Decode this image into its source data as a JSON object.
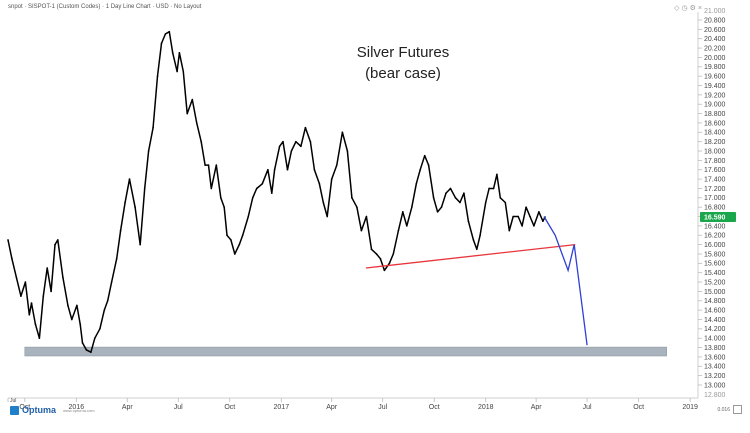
{
  "header_text": "snpot · SISPOT-1 (Custom Codes) · 1 Day Line Chart · USD · No Layout",
  "toolbar_icons": [
    "diamond-icon",
    "clock-icon",
    "settings-icon",
    "close-icon"
  ],
  "brand": {
    "name": "Optuma",
    "sub": "www.optuma.com"
  },
  "corner_value": "0.016",
  "chart_data": {
    "type": "line",
    "title": "Silver Futures",
    "subtitle": "(bear case)",
    "xlabel": "",
    "ylabel": "",
    "y_axis_side": "right",
    "ylim": [
      12.9,
      21.05
    ],
    "y_ticks": [
      13.0,
      13.2,
      13.4,
      13.6,
      13.8,
      14.0,
      14.2,
      14.4,
      14.6,
      14.8,
      15.0,
      15.2,
      15.4,
      15.6,
      15.8,
      16.0,
      16.2,
      16.4,
      16.6,
      16.8,
      17.0,
      17.2,
      17.4,
      17.6,
      17.8,
      18.0,
      18.2,
      18.4,
      18.6,
      18.8,
      19.0,
      19.2,
      19.4,
      19.6,
      19.8,
      20.0,
      20.2,
      20.4,
      20.6,
      20.8
    ],
    "y_tick_labels": [
      "13.000",
      "13.200",
      "13.400",
      "13.600",
      "13.800",
      "14.000",
      "14.200",
      "14.400",
      "14.600",
      "14.800",
      "15.000",
      "15.200",
      "15.400",
      "15.600",
      "15.800",
      "16.000",
      "16.200",
      "16.400",
      "16.600",
      "16.800",
      "17.000",
      "17.200",
      "17.400",
      "17.600",
      "17.800",
      "18.000",
      "18.200",
      "18.400",
      "18.600",
      "18.800",
      "19.000",
      "19.200",
      "19.400",
      "19.600",
      "19.800",
      "20.000",
      "20.200",
      "20.400",
      "20.600",
      "20.800"
    ],
    "y_top_label": "21.000",
    "y_bottom_label": "12.800",
    "xlim": [
      "2015-09-01",
      "2019-01-15"
    ],
    "x_ticks": [
      {
        "date": "2015-09-01",
        "label": "Jul"
      },
      {
        "date": "2015-10-01",
        "label": "Oct"
      },
      {
        "date": "2016-01-01",
        "label": "2016"
      },
      {
        "date": "2016-04-01",
        "label": "Apr"
      },
      {
        "date": "2016-07-01",
        "label": "Jul"
      },
      {
        "date": "2016-10-01",
        "label": "Oct"
      },
      {
        "date": "2017-01-01",
        "label": "2017"
      },
      {
        "date": "2017-04-01",
        "label": "Apr"
      },
      {
        "date": "2017-07-01",
        "label": "Jul"
      },
      {
        "date": "2017-10-01",
        "label": "Oct"
      },
      {
        "date": "2018-01-01",
        "label": "2018"
      },
      {
        "date": "2018-04-01",
        "label": "Apr"
      },
      {
        "date": "2018-07-01",
        "label": "Jul"
      },
      {
        "date": "2018-10-01",
        "label": "Oct"
      },
      {
        "date": "2019-01-01",
        "label": "2019"
      }
    ],
    "series": [
      {
        "color": "#000000",
        "points": [
          [
            "2015-09-01",
            16.1
          ],
          [
            "2015-09-08",
            15.7
          ],
          [
            "2015-09-16",
            15.3
          ],
          [
            "2015-09-24",
            14.9
          ],
          [
            "2015-10-02",
            15.2
          ],
          [
            "2015-10-09",
            14.5
          ],
          [
            "2015-10-13",
            14.75
          ],
          [
            "2015-10-20",
            14.3
          ],
          [
            "2015-10-27",
            14.0
          ],
          [
            "2015-11-03",
            14.9
          ],
          [
            "2015-11-10",
            15.5
          ],
          [
            "2015-11-17",
            15.0
          ],
          [
            "2015-11-24",
            16.0
          ],
          [
            "2015-11-29",
            16.1
          ],
          [
            "2015-12-08",
            15.3
          ],
          [
            "2015-12-17",
            14.7
          ],
          [
            "2015-12-24",
            14.4
          ],
          [
            "2016-01-02",
            14.7
          ],
          [
            "2016-01-08",
            14.3
          ],
          [
            "2016-01-12",
            13.9
          ],
          [
            "2016-01-19",
            13.75
          ],
          [
            "2016-01-27",
            13.7
          ],
          [
            "2016-02-03",
            14.0
          ],
          [
            "2016-02-12",
            14.2
          ],
          [
            "2016-02-20",
            14.6
          ],
          [
            "2016-02-26",
            14.8
          ],
          [
            "2016-03-04",
            15.2
          ],
          [
            "2016-03-13",
            15.7
          ],
          [
            "2016-03-20",
            16.3
          ],
          [
            "2016-03-28",
            16.9
          ],
          [
            "2016-04-05",
            17.4
          ],
          [
            "2016-04-15",
            16.8
          ],
          [
            "2016-04-24",
            16.0
          ],
          [
            "2016-05-02",
            17.2
          ],
          [
            "2016-05-09",
            18.0
          ],
          [
            "2016-05-17",
            18.5
          ],
          [
            "2016-05-25",
            19.6
          ],
          [
            "2016-06-01",
            20.3
          ],
          [
            "2016-06-08",
            20.5
          ],
          [
            "2016-06-15",
            20.55
          ],
          [
            "2016-06-21",
            20.1
          ],
          [
            "2016-06-29",
            19.7
          ],
          [
            "2016-07-03",
            20.1
          ],
          [
            "2016-07-10",
            19.7
          ],
          [
            "2016-07-17",
            18.8
          ],
          [
            "2016-07-26",
            19.1
          ],
          [
            "2016-08-03",
            18.6
          ],
          [
            "2016-08-11",
            18.2
          ],
          [
            "2016-08-18",
            17.7
          ],
          [
            "2016-08-24",
            17.7
          ],
          [
            "2016-08-29",
            17.2
          ],
          [
            "2016-09-07",
            17.7
          ],
          [
            "2016-09-15",
            17.0
          ],
          [
            "2016-09-21",
            16.8
          ],
          [
            "2016-09-26",
            16.2
          ],
          [
            "2016-10-03",
            16.1
          ],
          [
            "2016-10-10",
            15.8
          ],
          [
            "2016-10-18",
            16.0
          ],
          [
            "2016-10-24",
            16.2
          ],
          [
            "2016-11-03",
            16.6
          ],
          [
            "2016-11-11",
            17.0
          ],
          [
            "2016-11-18",
            17.2
          ],
          [
            "2016-11-28",
            17.3
          ],
          [
            "2016-12-08",
            17.6
          ],
          [
            "2016-12-15",
            17.1
          ],
          [
            "2016-12-20",
            17.6
          ],
          [
            "2016-12-29",
            18.1
          ],
          [
            "2017-01-04",
            18.2
          ],
          [
            "2017-01-12",
            17.6
          ],
          [
            "2017-01-19",
            18.0
          ],
          [
            "2017-01-27",
            18.2
          ],
          [
            "2017-02-05",
            18.1
          ],
          [
            "2017-02-13",
            18.5
          ],
          [
            "2017-02-22",
            18.2
          ],
          [
            "2017-03-01",
            17.6
          ],
          [
            "2017-03-10",
            17.3
          ],
          [
            "2017-03-17",
            16.9
          ],
          [
            "2017-03-24",
            16.6
          ],
          [
            "2017-04-01",
            17.4
          ],
          [
            "2017-04-10",
            17.7
          ],
          [
            "2017-04-20",
            18.4
          ],
          [
            "2017-04-29",
            18.0
          ],
          [
            "2017-05-07",
            17.0
          ],
          [
            "2017-05-16",
            16.8
          ],
          [
            "2017-05-24",
            16.3
          ],
          [
            "2017-06-02",
            16.6
          ],
          [
            "2017-06-11",
            15.9
          ],
          [
            "2017-06-20",
            15.8
          ],
          [
            "2017-06-27",
            15.7
          ],
          [
            "2017-07-04",
            15.45
          ],
          [
            "2017-07-13",
            15.6
          ],
          [
            "2017-07-20",
            15.8
          ],
          [
            "2017-07-29",
            16.3
          ],
          [
            "2017-08-06",
            16.7
          ],
          [
            "2017-08-13",
            16.4
          ],
          [
            "2017-08-22",
            16.8
          ],
          [
            "2017-08-30",
            17.3
          ],
          [
            "2017-09-06",
            17.6
          ],
          [
            "2017-09-14",
            17.9
          ],
          [
            "2017-09-21",
            17.7
          ],
          [
            "2017-09-30",
            17.0
          ],
          [
            "2017-10-07",
            16.7
          ],
          [
            "2017-10-14",
            16.8
          ],
          [
            "2017-10-22",
            17.1
          ],
          [
            "2017-10-30",
            17.2
          ],
          [
            "2017-11-08",
            17.0
          ],
          [
            "2017-11-16",
            16.9
          ],
          [
            "2017-11-23",
            17.1
          ],
          [
            "2017-12-01",
            16.5
          ],
          [
            "2017-12-10",
            16.1
          ],
          [
            "2017-12-16",
            15.9
          ],
          [
            "2017-12-22",
            16.2
          ],
          [
            "2018-01-01",
            16.9
          ],
          [
            "2018-01-07",
            17.2
          ],
          [
            "2018-01-15",
            17.2
          ],
          [
            "2018-01-21",
            17.5
          ],
          [
            "2018-01-27",
            17.0
          ],
          [
            "2018-02-05",
            16.9
          ],
          [
            "2018-02-12",
            16.3
          ],
          [
            "2018-02-19",
            16.6
          ],
          [
            "2018-02-28",
            16.6
          ],
          [
            "2018-03-07",
            16.4
          ],
          [
            "2018-03-14",
            16.8
          ],
          [
            "2018-03-21",
            16.6
          ],
          [
            "2018-03-28",
            16.4
          ],
          [
            "2018-04-06",
            16.7
          ],
          [
            "2018-04-13",
            16.5
          ],
          [
            "2018-04-17",
            16.59
          ]
        ]
      }
    ],
    "last_value_label": "16.590",
    "annotations": [
      {
        "type": "trendline",
        "color": "#e8353c",
        "points": [
          [
            "2017-06-01",
            15.5
          ],
          [
            "2018-06-10",
            16.0
          ]
        ]
      },
      {
        "type": "projection",
        "color": "#2f3fd6",
        "points": [
          [
            "2018-04-15",
            16.6
          ],
          [
            "2018-05-05",
            16.2
          ],
          [
            "2018-05-28",
            15.45
          ],
          [
            "2018-06-08",
            16.0
          ],
          [
            "2018-07-01",
            13.85
          ]
        ]
      },
      {
        "type": "support-zone",
        "color": "#a9b3bd",
        "x": [
          "2015-10-01",
          "2018-11-20"
        ],
        "y": [
          13.62,
          13.81
        ]
      }
    ]
  }
}
